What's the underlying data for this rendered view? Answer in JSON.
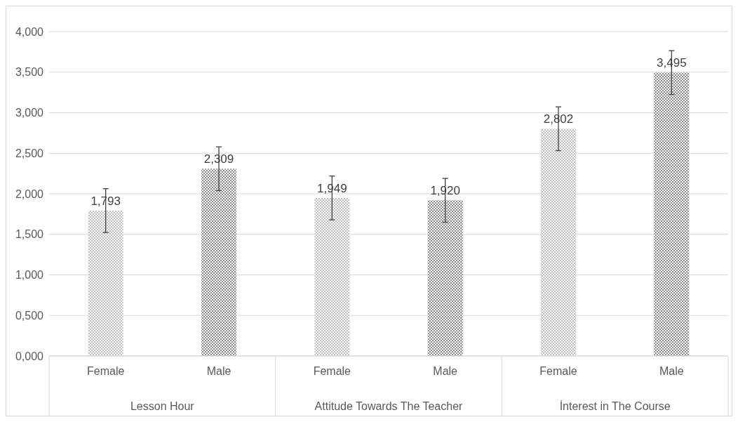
{
  "chart_data": {
    "type": "bar",
    "categories": [
      "Female",
      "Male",
      "Female",
      "Male",
      "Female",
      "Male"
    ],
    "values": [
      1.793,
      2.309,
      1.949,
      1.92,
      2.802,
      3.495
    ],
    "value_labels": [
      "1,793",
      "2,309",
      "1,949",
      "1,920",
      "2,802",
      "3,495"
    ],
    "errors": [
      0.27,
      0.27,
      0.27,
      0.27,
      0.27,
      0.27
    ],
    "colors": [
      "#bfbfbf",
      "#8c8c8c",
      "#bfbfbf",
      "#8c8c8c",
      "#bfbfbf",
      "#8c8c8c"
    ],
    "annotations": [
      "Lesson Hour",
      "Attitude Towards The Teacher",
      "İnterest in The Course"
    ],
    "ylim": [
      0,
      4
    ],
    "yticks": [
      {
        "value": 0,
        "label": "0,000"
      },
      {
        "value": 0.5,
        "label": "0,500"
      },
      {
        "value": 1,
        "label": "1,000"
      },
      {
        "value": 1.5,
        "label": "1,500"
      },
      {
        "value": 2,
        "label": "2,000"
      },
      {
        "value": 2.5,
        "label": "2,500"
      },
      {
        "value": 3,
        "label": "3,000"
      },
      {
        "value": 3.5,
        "label": "3,500"
      },
      {
        "value": 4,
        "label": "4,000"
      }
    ],
    "grid": "y"
  }
}
